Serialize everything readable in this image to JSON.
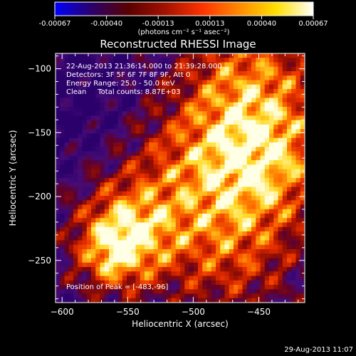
{
  "colorbar": {
    "colors": [
      "#0000ff",
      "#2b006a",
      "#5a0000",
      "#a31200",
      "#ff3300",
      "#ff8a00",
      "#ffe000",
      "#ffffff"
    ],
    "ticks": [
      "-0.00067",
      "-0.00040",
      "-0.00013",
      "0.00013",
      "0.00040",
      "0.00067"
    ],
    "unit_label": "(photons cm⁻² s⁻¹ asec⁻²)"
  },
  "chart_data": {
    "type": "heatmap",
    "title": "Reconstructed RHESSI Image",
    "xlabel": "Heliocentric X (arcsec)",
    "ylabel": "Heliocentric Y (arcsec)",
    "xlim": [
      -605,
      -415
    ],
    "ylim": [
      -283,
      -88
    ],
    "x_ticks": [
      -600,
      -550,
      -500,
      -450
    ],
    "y_ticks": [
      -100,
      -150,
      -200,
      -250
    ],
    "x_tick_labels": [
      "−600",
      "−550",
      "−500",
      "−450"
    ],
    "y_tick_labels": [
      "−100",
      "−150",
      "−200",
      "−250"
    ],
    "peak": [
      -483,
      -96
    ],
    "annotations": [
      "22-Aug-2013 21:36:14.000 to 21:39:28.000",
      "Detectors: 3F 5F 6F 7F 8F 9F, Att 0",
      "Energy Range: 25.0 - 50.0 keV",
      "Clean     Total counts: 8.87E+03"
    ],
    "peak_label": "Position of Peak = [-483,-96]"
  },
  "footer": {
    "timestamp": "29-Aug-2013 11:07"
  }
}
